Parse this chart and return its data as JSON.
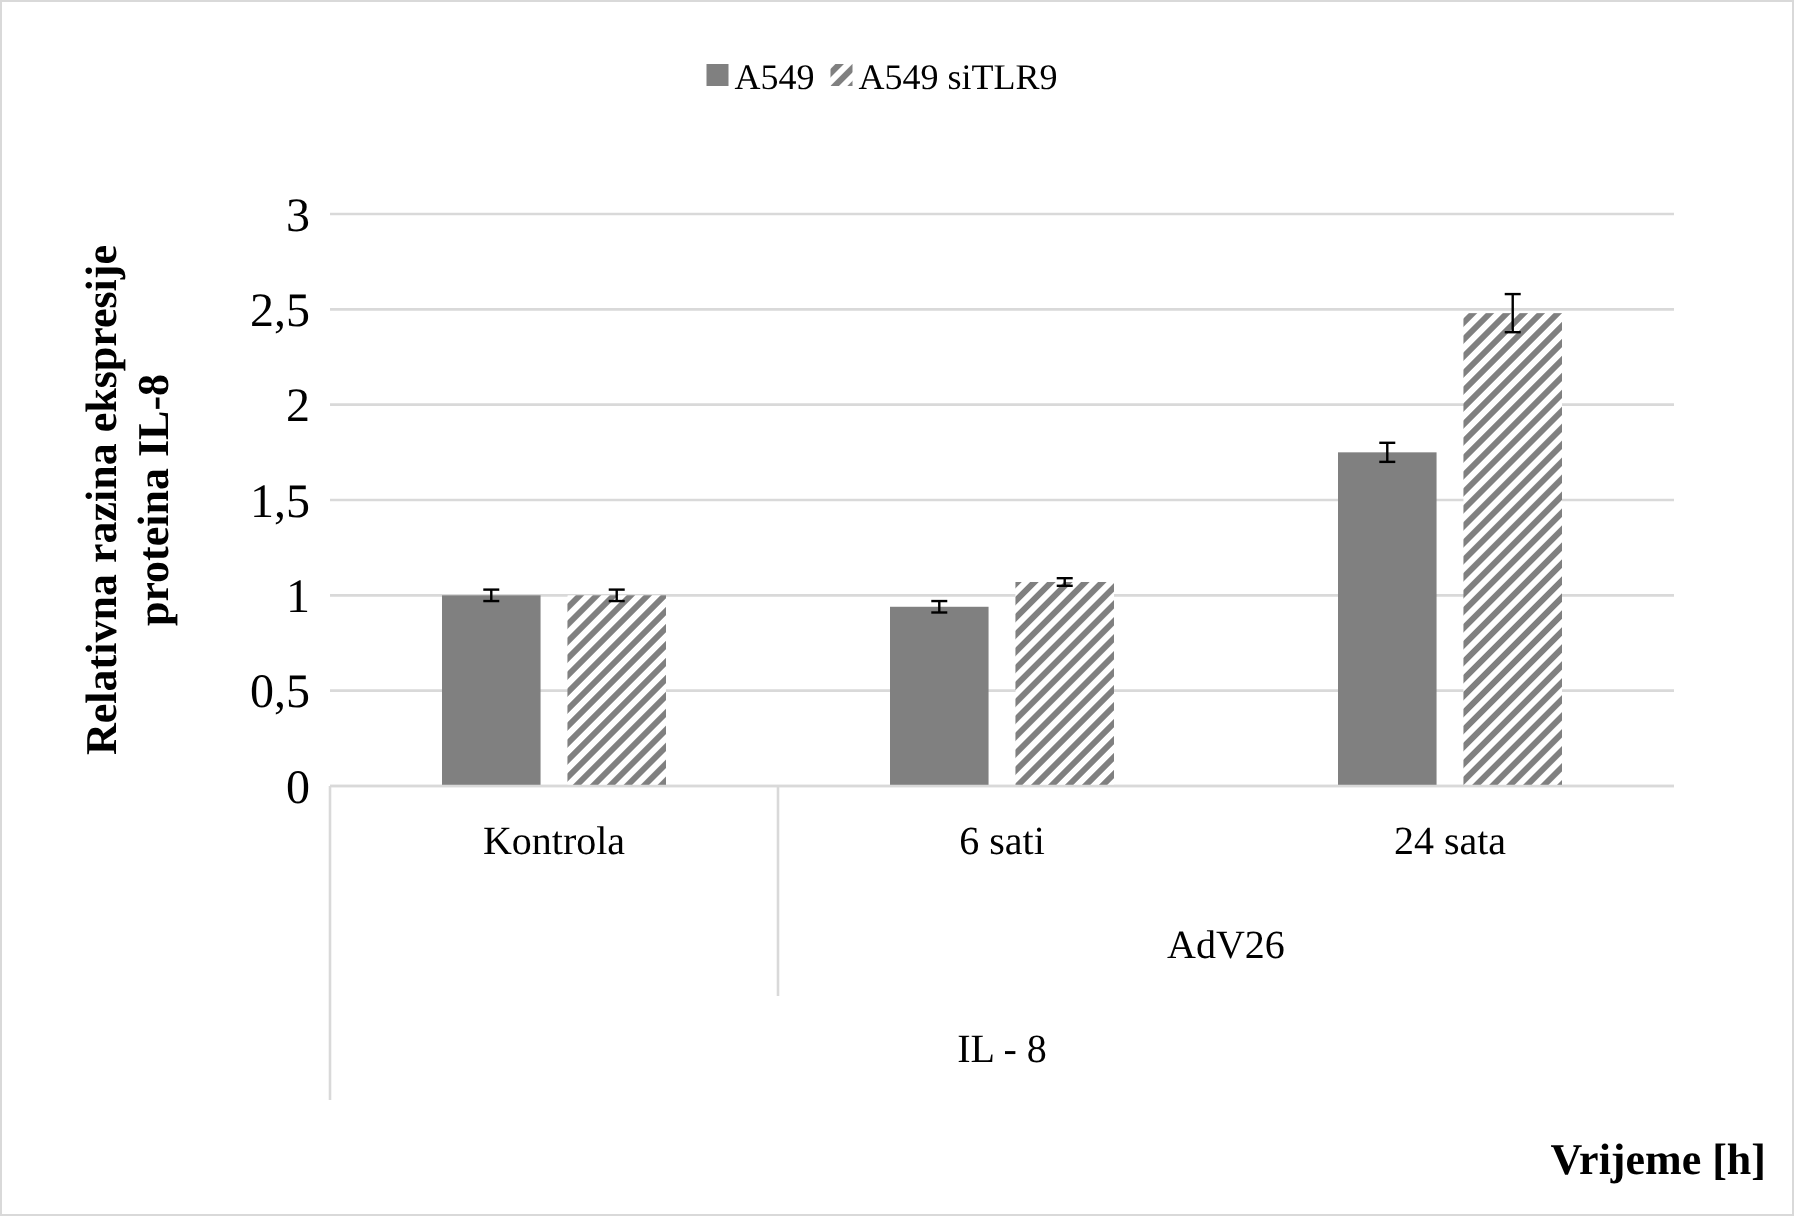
{
  "chart_data": {
    "type": "bar",
    "ylabel": "Relativna razina ekspresije proteina IL-8",
    "categories": [
      "Kontrola",
      "6 sati",
      "24 sata"
    ],
    "series": [
      {
        "name": "A549",
        "color": "#808080",
        "values": [
          1,
          0.94,
          1.75
        ],
        "errors": [
          0.03,
          0.03,
          0.05
        ]
      },
      {
        "name": "A549 siTLR9",
        "color": "#808080",
        "values": [
          1,
          1.07,
          2.48
        ],
        "errors": [
          0.03,
          0.02,
          0.1
        ]
      }
    ],
    "ylim": [
      0,
      3
    ],
    "yticks": [
      0,
      {
        "value": 0.5,
        "label": "0,5"
      },
      1,
      {
        "value": 1.5,
        "label": "1,5"
      },
      2,
      {
        "value": 2.5,
        "label": "2,5"
      },
      3
    ],
    "grid": "y",
    "legend": "top",
    "annotations": [
      "AdV26",
      "IL - 8",
      "Vrijeme [h]"
    ]
  }
}
